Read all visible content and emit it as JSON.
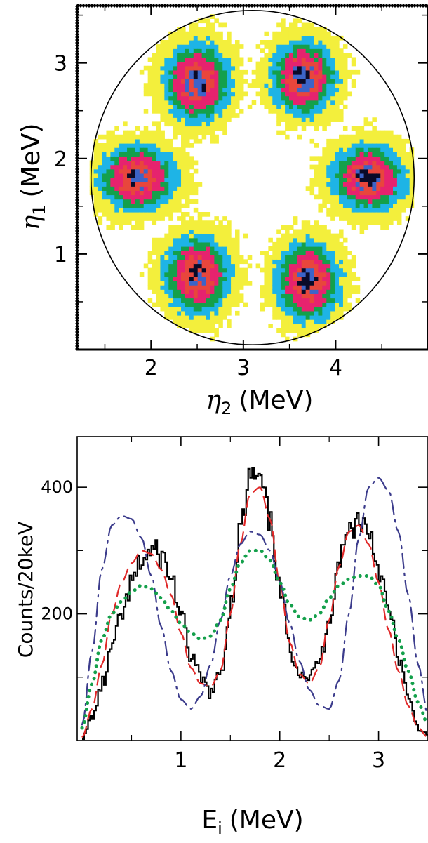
{
  "chart_data": [
    {
      "type": "heatmap",
      "xlabel": "η2 (MeV)",
      "ylabel": "η1 (MeV)",
      "xlabel_parts": {
        "symbol": "η",
        "sub": "2",
        "unit": "(MeV)"
      },
      "ylabel_parts": {
        "symbol": "η",
        "sub": "1",
        "unit": "(MeV)"
      },
      "xlim": [
        1.2,
        5.0
      ],
      "ylim": [
        0.0,
        3.6
      ],
      "xticks": [
        2,
        3,
        4
      ],
      "yticks": [
        1,
        2,
        3
      ],
      "boundary_circle": {
        "cx": 3.1,
        "cy": 1.8,
        "r": 1.75
      },
      "levels_colors": [
        "#f3ef3c",
        "#1eb4e6",
        "#14a04b",
        "#e6236e",
        "#e8463c",
        "#3c64c8",
        "#0a0a28"
      ],
      "clusters": [
        {
          "x": 2.5,
          "y": 2.8,
          "sx": 0.26,
          "sy": 0.3,
          "peak": 1.0
        },
        {
          "x": 3.65,
          "y": 2.85,
          "sx": 0.25,
          "sy": 0.28,
          "peak": 1.02
        },
        {
          "x": 1.85,
          "y": 1.8,
          "sx": 0.3,
          "sy": 0.25,
          "peak": 1.0
        },
        {
          "x": 4.35,
          "y": 1.8,
          "sx": 0.29,
          "sy": 0.25,
          "peak": 1.02
        },
        {
          "x": 2.5,
          "y": 0.78,
          "sx": 0.26,
          "sy": 0.3,
          "peak": 1.0
        },
        {
          "x": 3.7,
          "y": 0.72,
          "sx": 0.25,
          "sy": 0.3,
          "peak": 1.02
        }
      ]
    },
    {
      "type": "line",
      "xlabel": "Ei (MeV)",
      "xlabel_parts": {
        "symbol": "E",
        "sub": "i",
        "unit": "(MeV)"
      },
      "ylabel": "Counts/20keV",
      "xlim": [
        -0.05,
        3.5
      ],
      "ylim": [
        0,
        480
      ],
      "xticks": [
        1,
        2,
        3
      ],
      "yticks": [
        200,
        400
      ],
      "x": [
        0.0,
        0.1,
        0.2,
        0.3,
        0.4,
        0.5,
        0.6,
        0.7,
        0.8,
        0.9,
        1.0,
        1.1,
        1.2,
        1.3,
        1.4,
        1.5,
        1.6,
        1.7,
        1.8,
        1.9,
        2.0,
        2.1,
        2.2,
        2.3,
        2.4,
        2.5,
        2.6,
        2.7,
        2.8,
        2.9,
        3.0,
        3.1,
        3.2,
        3.3,
        3.4,
        3.5
      ],
      "series": [
        {
          "style": "histogram",
          "color": "#000000",
          "values": [
            5,
            40,
            90,
            150,
            200,
            250,
            285,
            300,
            290,
            255,
            190,
            130,
            95,
            75,
            110,
            220,
            340,
            420,
            405,
            340,
            230,
            140,
            110,
            100,
            130,
            200,
            290,
            335,
            350,
            330,
            270,
            200,
            130,
            60,
            20,
            5
          ]
        },
        {
          "style": "dashed",
          "color": "#e02828",
          "values": [
            5,
            50,
            120,
            200,
            250,
            280,
            300,
            295,
            270,
            230,
            170,
            115,
            90,
            85,
            110,
            200,
            310,
            390,
            400,
            350,
            250,
            155,
            105,
            90,
            115,
            190,
            275,
            330,
            340,
            310,
            250,
            175,
            110,
            55,
            20,
            5
          ]
        },
        {
          "style": "dash-dot",
          "color": "#3c3c8c",
          "values": [
            25,
            140,
            270,
            340,
            355,
            350,
            320,
            260,
            180,
            110,
            65,
            50,
            70,
            120,
            190,
            260,
            310,
            330,
            325,
            300,
            250,
            185,
            125,
            80,
            55,
            50,
            95,
            200,
            320,
            400,
            415,
            395,
            330,
            230,
            120,
            40
          ]
        },
        {
          "style": "dotted",
          "color": "#14a04b",
          "values": [
            20,
            90,
            160,
            200,
            220,
            235,
            245,
            240,
            225,
            205,
            185,
            170,
            160,
            165,
            190,
            240,
            280,
            300,
            300,
            285,
            250,
            215,
            195,
            190,
            200,
            225,
            245,
            255,
            260,
            260,
            245,
            205,
            160,
            110,
            60,
            25
          ]
        }
      ]
    }
  ]
}
